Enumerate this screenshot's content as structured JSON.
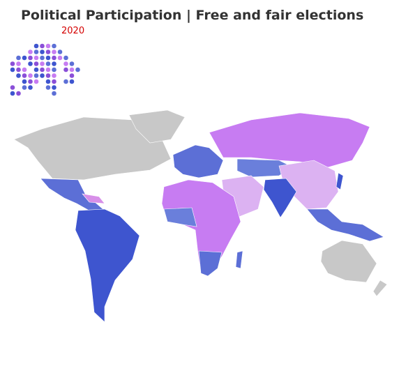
{
  "header": {
    "title": "Political Participation | Free and fair elections",
    "year": "2020"
  }
}
